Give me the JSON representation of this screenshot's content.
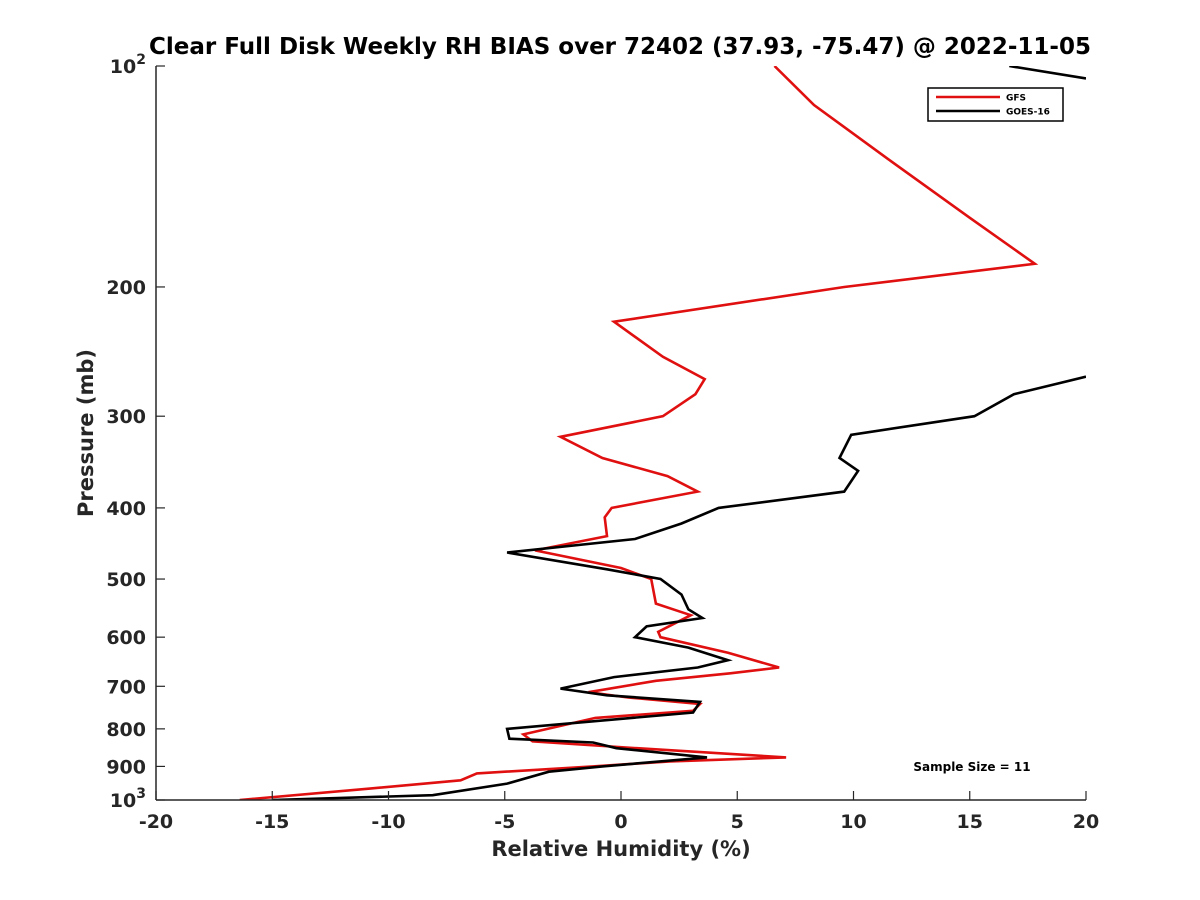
{
  "chart_data": {
    "type": "line",
    "title": "Clear Full Disk Weekly RH BIAS over 72402 (37.93, -75.47) @ 2022-11-05",
    "xlabel": "Relative Humidity (%)",
    "ylabel": "Pressure (mb)",
    "xlim": [
      -20,
      20
    ],
    "ylim": [
      100,
      1000
    ],
    "y_scale": "log",
    "y_reversed": true,
    "x_ticks": [
      -20,
      -15,
      -10,
      -5,
      0,
      5,
      10,
      15,
      20
    ],
    "x_tick_labels": [
      "-20",
      "-15",
      "-10",
      "-5",
      "0",
      "5",
      "10",
      "15",
      "20"
    ],
    "y_ticks": [
      200,
      300,
      400,
      500,
      600,
      700,
      800,
      900
    ],
    "y_tick_labels": [
      "200",
      "300",
      "400",
      "500",
      "600",
      "700",
      "800",
      "900"
    ],
    "y_end_labels": [
      {
        "value": 100,
        "base": "10",
        "exp": "2"
      },
      {
        "value": 1000,
        "base": "10",
        "exp": "3"
      }
    ],
    "legend_position": "top-right",
    "annotation": "Sample Size = 11",
    "series": [
      {
        "name": "GFS",
        "color": "#e01010",
        "points": [
          [
            6.6,
            100
          ],
          [
            8.3,
            113
          ],
          [
            11.5,
            134
          ],
          [
            15.0,
            161
          ],
          [
            17.8,
            186
          ],
          [
            9.6,
            200
          ],
          [
            -0.3,
            223
          ],
          [
            1.8,
            249
          ],
          [
            3.6,
            267
          ],
          [
            3.2,
            280
          ],
          [
            1.8,
            300
          ],
          [
            -2.6,
            320
          ],
          [
            -0.8,
            342
          ],
          [
            2.0,
            362
          ],
          [
            3.3,
            380
          ],
          [
            -0.4,
            400
          ],
          [
            -0.7,
            412
          ],
          [
            -0.6,
            437
          ],
          [
            -3.7,
            457
          ],
          [
            0.0,
            483
          ],
          [
            1.3,
            500
          ],
          [
            1.5,
            540
          ],
          [
            3.0,
            560
          ],
          [
            1.6,
            590
          ],
          [
            1.7,
            600
          ],
          [
            4.6,
            630
          ],
          [
            6.8,
            660
          ],
          [
            4.7,
            672
          ],
          [
            1.5,
            688
          ],
          [
            -1.4,
            713
          ],
          [
            0.3,
            725
          ],
          [
            3.4,
            740
          ],
          [
            3.1,
            756
          ],
          [
            -1.1,
            773
          ],
          [
            -4.2,
            814
          ],
          [
            -3.8,
            832
          ],
          [
            0.7,
            850
          ],
          [
            7.1,
            875
          ],
          [
            2.1,
            886
          ],
          [
            -1.2,
            900
          ],
          [
            -6.2,
            920
          ],
          [
            -6.9,
            940
          ],
          [
            -10.8,
            965
          ],
          [
            -16.4,
            1000
          ]
        ]
      },
      {
        "name": "GOES-16",
        "color": "#000000",
        "points": [
          [
            16.7,
            100
          ],
          [
            20.0,
            104
          ],
          [
            null,
            null
          ],
          [
            20.0,
            265
          ],
          [
            16.9,
            280
          ],
          [
            15.2,
            300
          ],
          [
            9.9,
            318
          ],
          [
            9.4,
            342
          ],
          [
            10.2,
            356
          ],
          [
            9.6,
            380
          ],
          [
            4.2,
            400
          ],
          [
            2.6,
            420
          ],
          [
            0.6,
            441
          ],
          [
            -4.9,
            460
          ],
          [
            -0.6,
            485
          ],
          [
            1.7,
            500
          ],
          [
            2.6,
            525
          ],
          [
            2.9,
            550
          ],
          [
            3.5,
            565
          ],
          [
            1.1,
            580
          ],
          [
            0.6,
            600
          ],
          [
            2.9,
            620
          ],
          [
            4.6,
            645
          ],
          [
            3.3,
            660
          ],
          [
            -0.3,
            680
          ],
          [
            -2.6,
            705
          ],
          [
            -0.6,
            720
          ],
          [
            3.4,
            735
          ],
          [
            3.1,
            760
          ],
          [
            -4.9,
            800
          ],
          [
            -4.8,
            825
          ],
          [
            -1.2,
            835
          ],
          [
            -0.2,
            850
          ],
          [
            3.7,
            875
          ],
          [
            -0.8,
            900
          ],
          [
            -3.1,
            915
          ],
          [
            -4.9,
            950
          ],
          [
            -8.1,
            985
          ],
          [
            -15.0,
            1000
          ]
        ]
      }
    ]
  }
}
